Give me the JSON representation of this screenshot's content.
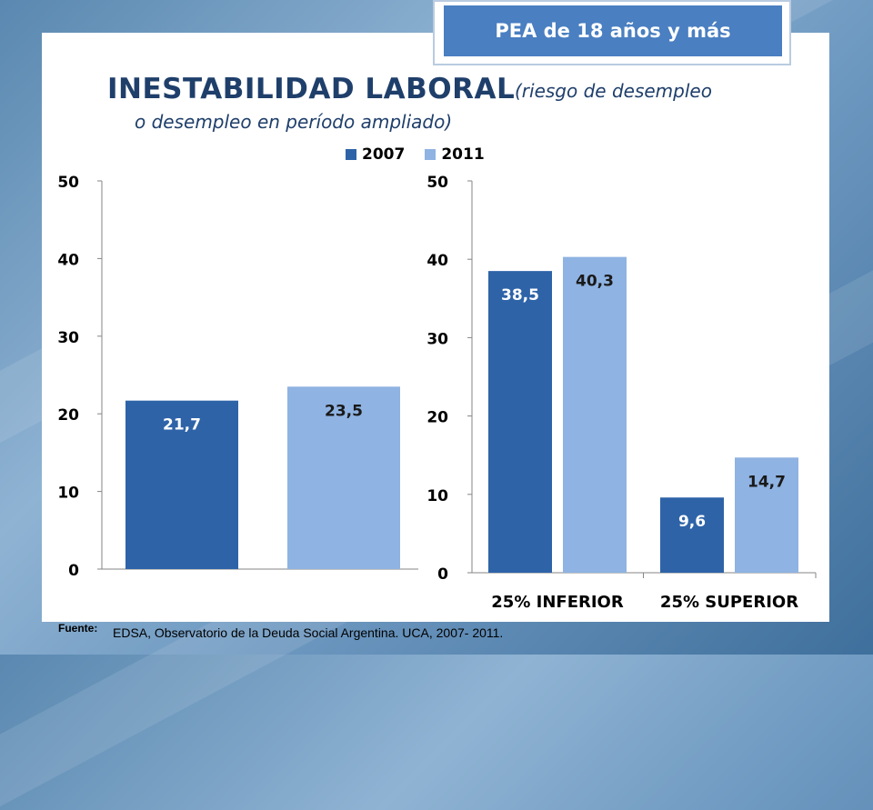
{
  "badge": "PEA de 18 años y más",
  "title": {
    "main": "INESTABILIDAD LABORAL",
    "sub_line1": "(riesgo de desempleo",
    "sub_line2": "o desempleo en período ampliado)"
  },
  "footer": {
    "label": "Fuente:",
    "text": "EDSA, Observatorio de la Deuda Social Argentina. UCA, 2007- 2011."
  },
  "colors": {
    "series_2007": "#2e63a8",
    "series_2011": "#8fb3e2",
    "title": "#1f3f6b",
    "badge": "#4a7fc1"
  },
  "chart_data": [
    {
      "type": "bar",
      "categories": [
        ""
      ],
      "series": [
        {
          "name": "2007",
          "values": [
            21.7
          ],
          "labels": [
            "21,7"
          ]
        },
        {
          "name": "2011",
          "values": [
            23.5
          ],
          "labels": [
            "23,5"
          ]
        }
      ],
      "ylim": [
        0,
        50
      ],
      "yticks": [
        0,
        10,
        20,
        30,
        40,
        50
      ],
      "legend": "top",
      "grid": false
    },
    {
      "type": "bar",
      "categories": [
        "25% INFERIOR",
        "25% SUPERIOR"
      ],
      "series": [
        {
          "name": "2007",
          "values": [
            38.5,
            9.6
          ],
          "labels": [
            "38,5",
            "9,6"
          ]
        },
        {
          "name": "2011",
          "values": [
            40.3,
            14.7
          ],
          "labels": [
            "40,3",
            "14,7"
          ]
        }
      ],
      "ylim": [
        0,
        50
      ],
      "yticks": [
        0,
        10,
        20,
        30,
        40,
        50
      ],
      "legend": "top",
      "grid": false
    }
  ]
}
